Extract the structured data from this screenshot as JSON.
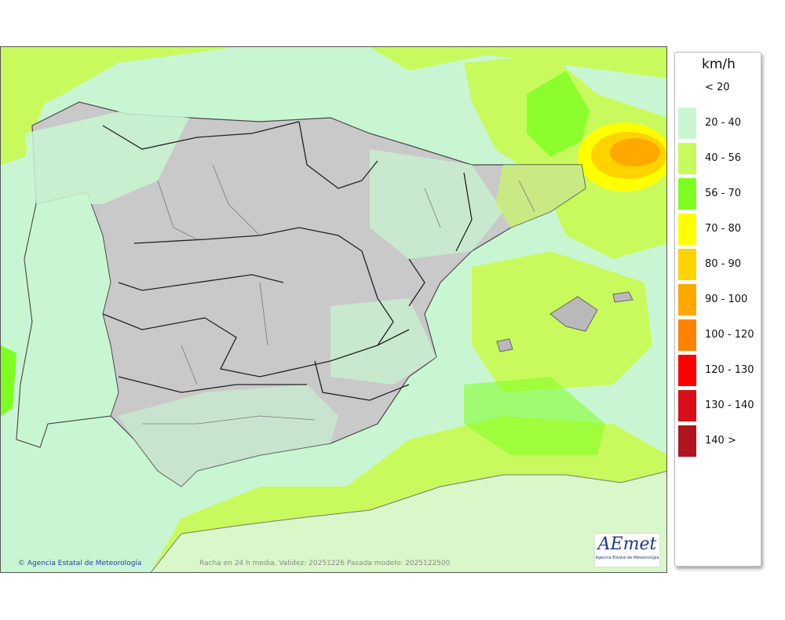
{
  "map": {
    "credit": "Agencia Estatal de Meteorología",
    "caption": "Racha en 24 h media. Validez: 20251226 Pasada modelo: 2025122500",
    "logo_text": "AEmet",
    "logo_subtext": "Agencia Estatal de Meteorología",
    "copyright_symbol": "©"
  },
  "legend": {
    "unit": "km/h",
    "items": [
      {
        "label": "< 20",
        "color": "#ffffff"
      },
      {
        "label": "20 - 40",
        "color": "#c9f6d2"
      },
      {
        "label": "40 - 56",
        "color": "#c8fa5e"
      },
      {
        "label": "56 - 70",
        "color": "#7dff21"
      },
      {
        "label": "70 - 80",
        "color": "#ffff00"
      },
      {
        "label": "80 - 90",
        "color": "#ffd200"
      },
      {
        "label": "90 - 100",
        "color": "#ffa800"
      },
      {
        "label": "100 - 120",
        "color": "#ff8200"
      },
      {
        "label": "120 - 130",
        "color": "#ff0000"
      },
      {
        "label": "130 - 140",
        "color": "#d70f19"
      },
      {
        "label": "140 >",
        "color": "#b0141e"
      }
    ]
  }
}
